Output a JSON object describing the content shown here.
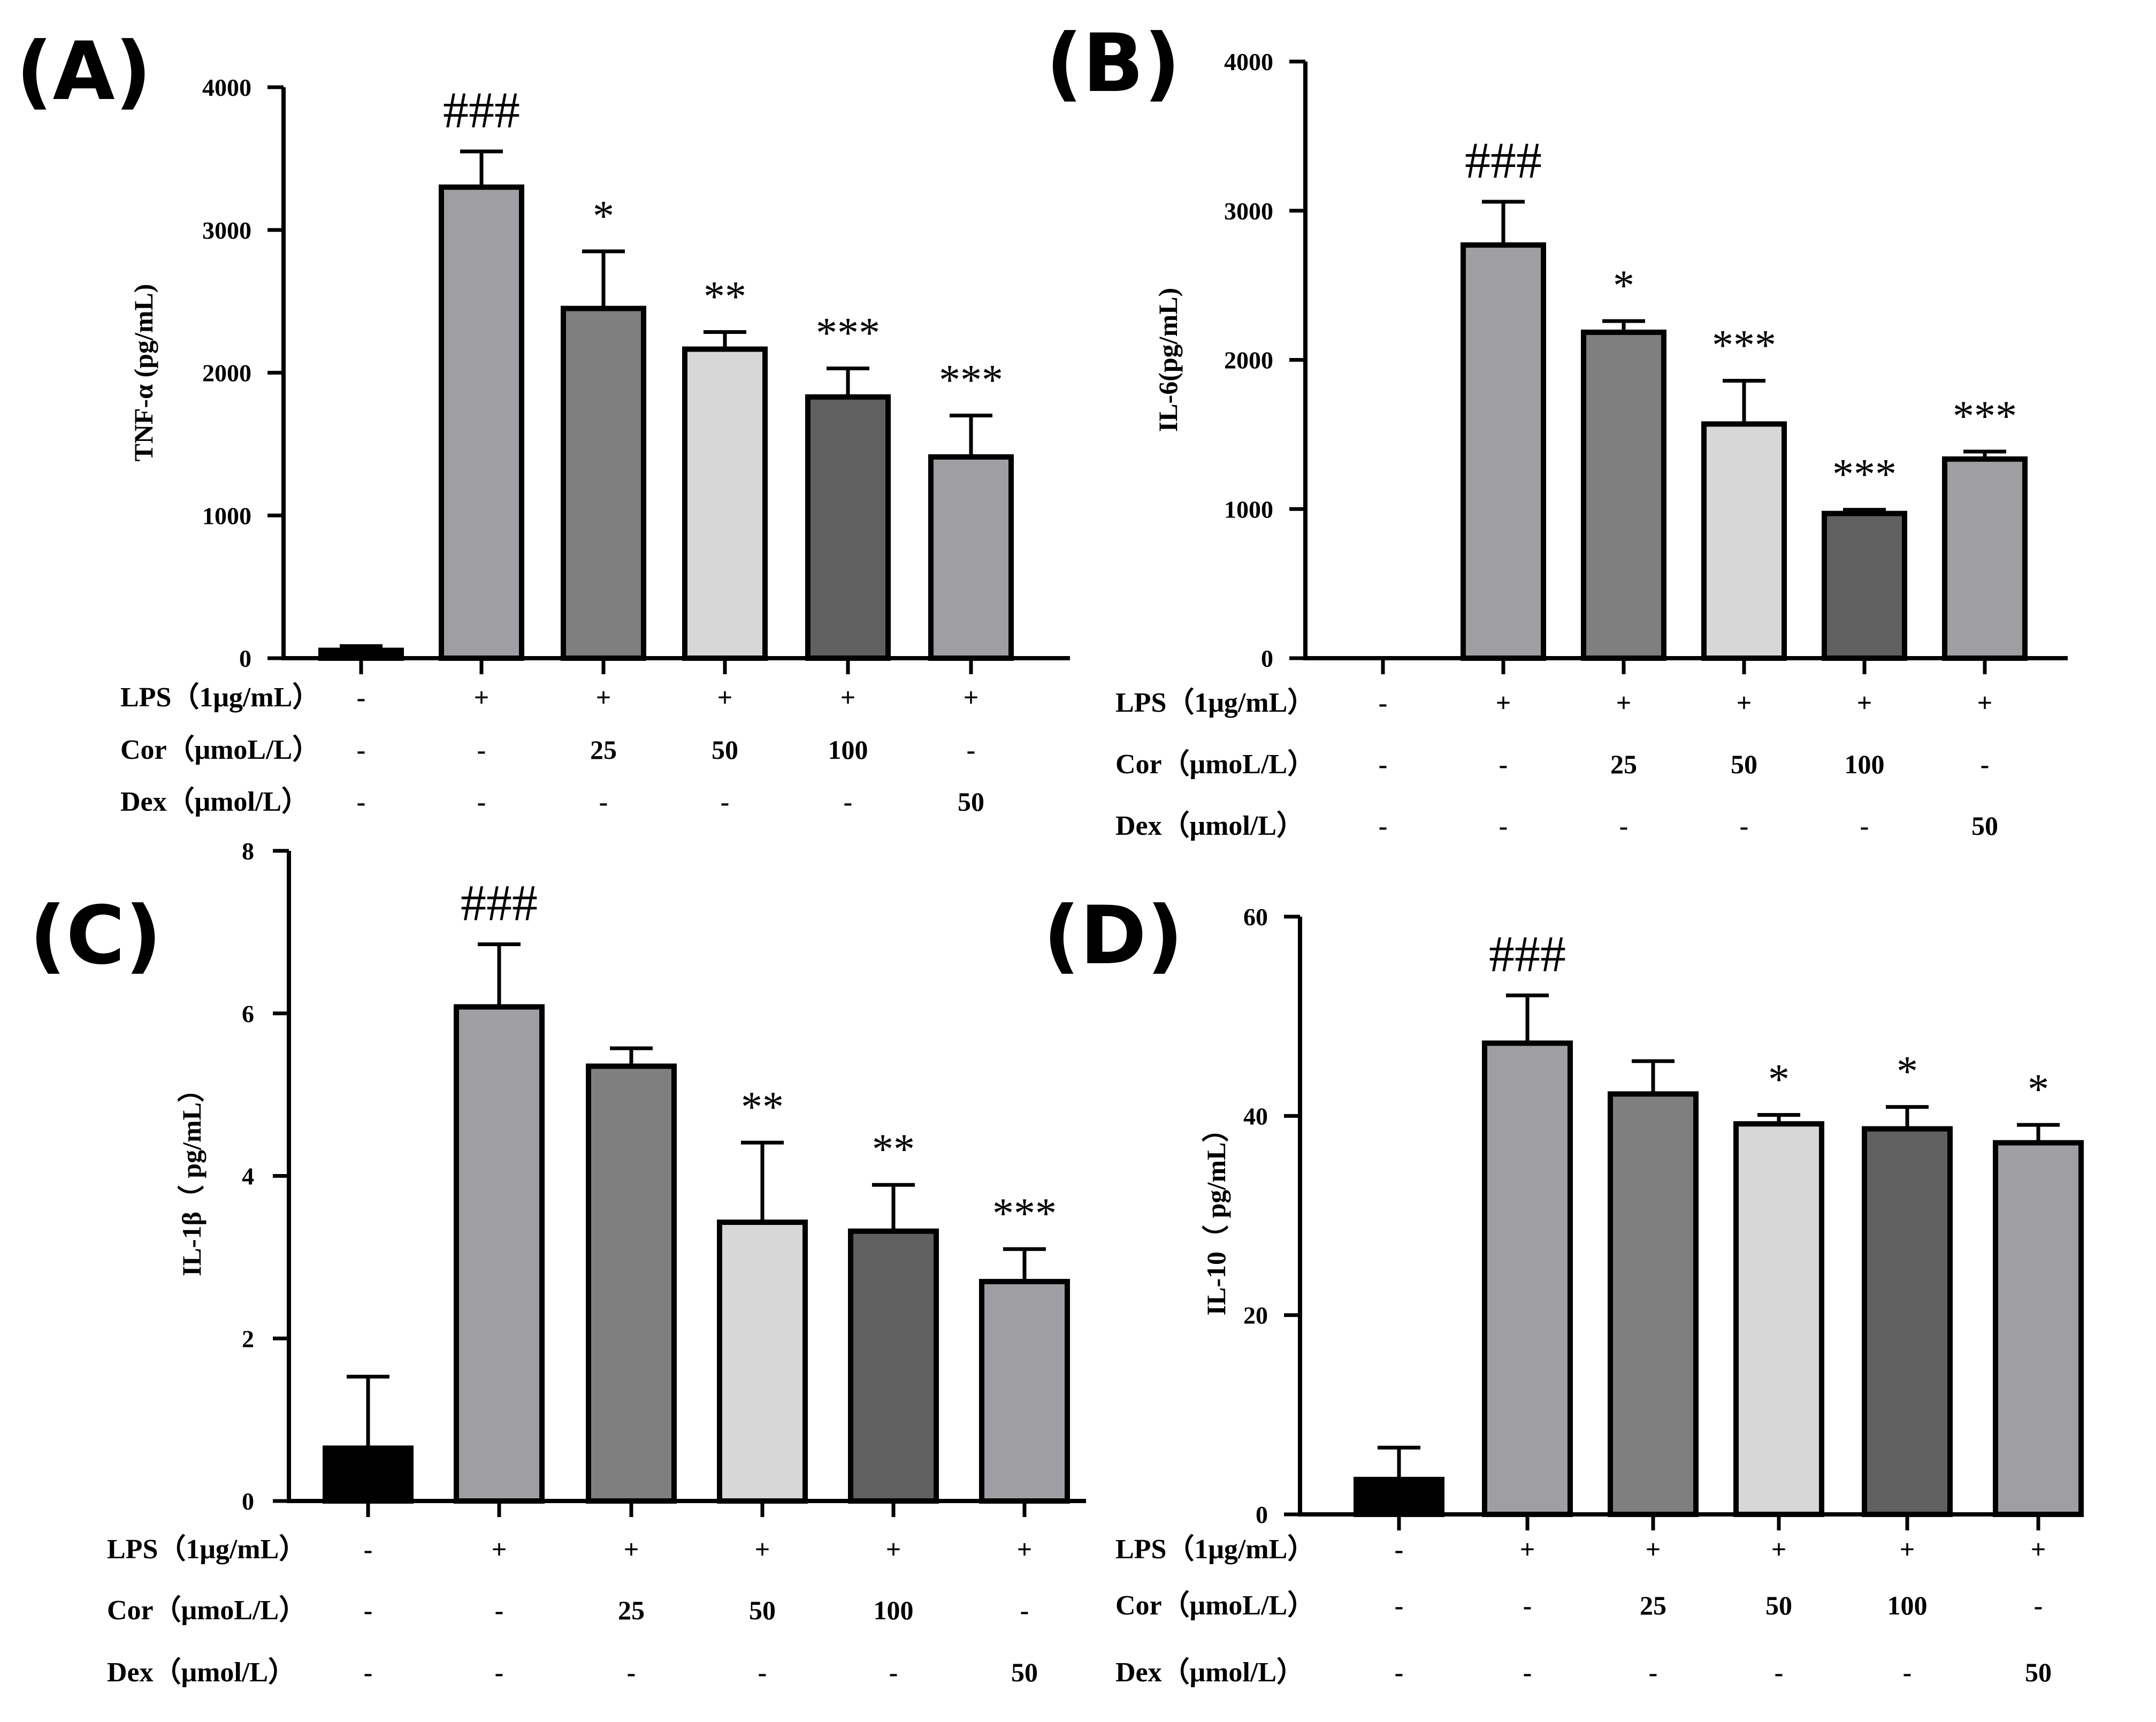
{
  "row_labels": {
    "lps": "LPS（1μg/mL）",
    "cor": "Cor（μmoL/L）",
    "dex": "Dex（μmol/L）"
  },
  "colors": {
    "ctrl": "#000000",
    "lps": "#9e9ea3",
    "cor25": "#7f7f80",
    "cor50": "#d7d7d7",
    "cor100": "#606061",
    "dex50": "#9e9ea3"
  },
  "chart_data": [
    {
      "panel": "(A)",
      "type": "bar",
      "ylabel": "TNF-α (pg/mL)",
      "ylim": [
        0,
        4000
      ],
      "yticks": [
        0,
        1000,
        2000,
        3000,
        4000
      ],
      "ytick_labels": [
        "0",
        "1000",
        "2000",
        "3000",
        "4000"
      ],
      "values": [
        55,
        3300,
        2450,
        2165,
        1830,
        1410
      ],
      "errors": [
        30,
        250,
        400,
        120,
        200,
        290
      ],
      "significance": [
        "",
        "###",
        "*",
        "**",
        "***",
        "***"
      ],
      "table": {
        "lps": [
          "-",
          "+",
          "+",
          "+",
          "+",
          "+"
        ],
        "cor": [
          "-",
          "-",
          "25",
          "50",
          "100",
          "-"
        ],
        "dex": [
          "-",
          "-",
          "-",
          "-",
          "-",
          "50"
        ]
      }
    },
    {
      "panel": "(B)",
      "type": "bar",
      "ylabel": "IL-6(pg/mL)",
      "ylim": [
        0,
        4000
      ],
      "yticks": [
        0,
        1000,
        2000,
        3000,
        4000
      ],
      "ytick_labels": [
        "0",
        "1000",
        "2000",
        "3000",
        "4000"
      ],
      "values": [
        0,
        2770,
        2185,
        1570,
        970,
        1335
      ],
      "errors": [
        0,
        290,
        75,
        290,
        25,
        50
      ],
      "significance": [
        "",
        "###",
        "*",
        "***",
        "***",
        "***"
      ],
      "table": {
        "lps": [
          "-",
          "+",
          "+",
          "+",
          "+",
          "+"
        ],
        "cor": [
          "-",
          "-",
          "25",
          "50",
          "100",
          "-"
        ],
        "dex": [
          "-",
          "-",
          "-",
          "-",
          "-",
          "50"
        ]
      }
    },
    {
      "panel": "(C)",
      "type": "bar",
      "ylabel": "IL-1β（ pg/mL）",
      "ylim": [
        0,
        8
      ],
      "yticks": [
        0,
        2,
        4,
        6,
        8
      ],
      "ytick_labels": [
        "0",
        "2",
        "4",
        "6",
        "8"
      ],
      "values": [
        0.65,
        6.08,
        5.35,
        3.43,
        3.32,
        2.7
      ],
      "errors": [
        0.88,
        0.77,
        0.22,
        0.98,
        0.57,
        0.4
      ],
      "significance": [
        "",
        "###",
        "",
        "**",
        "**",
        "***"
      ],
      "table": {
        "lps": [
          "-",
          "+",
          "+",
          "+",
          "+",
          "+"
        ],
        "cor": [
          "-",
          "-",
          "25",
          "50",
          "100",
          "-"
        ],
        "dex": [
          "-",
          "-",
          "-",
          "-",
          "-",
          "50"
        ]
      }
    },
    {
      "panel": "(D)",
      "type": "bar",
      "ylabel": "IL-10（ pg/mL）",
      "ylim": [
        0,
        60
      ],
      "yticks": [
        0,
        20,
        40,
        60
      ],
      "ytick_labels": [
        "0",
        "20",
        "40",
        "60"
      ],
      "values": [
        3.5,
        47.3,
        42.2,
        39.2,
        38.7,
        37.3
      ],
      "errors": [
        3.2,
        4.8,
        3.3,
        0.9,
        2.2,
        1.8
      ],
      "significance": [
        "",
        "###",
        "",
        "*",
        "*",
        "*"
      ],
      "table": {
        "lps": [
          "-",
          "+",
          "+",
          "+",
          "+",
          "+"
        ],
        "cor": [
          "-",
          "-",
          "25",
          "50",
          "100",
          "-"
        ],
        "dex": [
          "-",
          "-",
          "-",
          "-",
          "-",
          "50"
        ]
      }
    }
  ]
}
